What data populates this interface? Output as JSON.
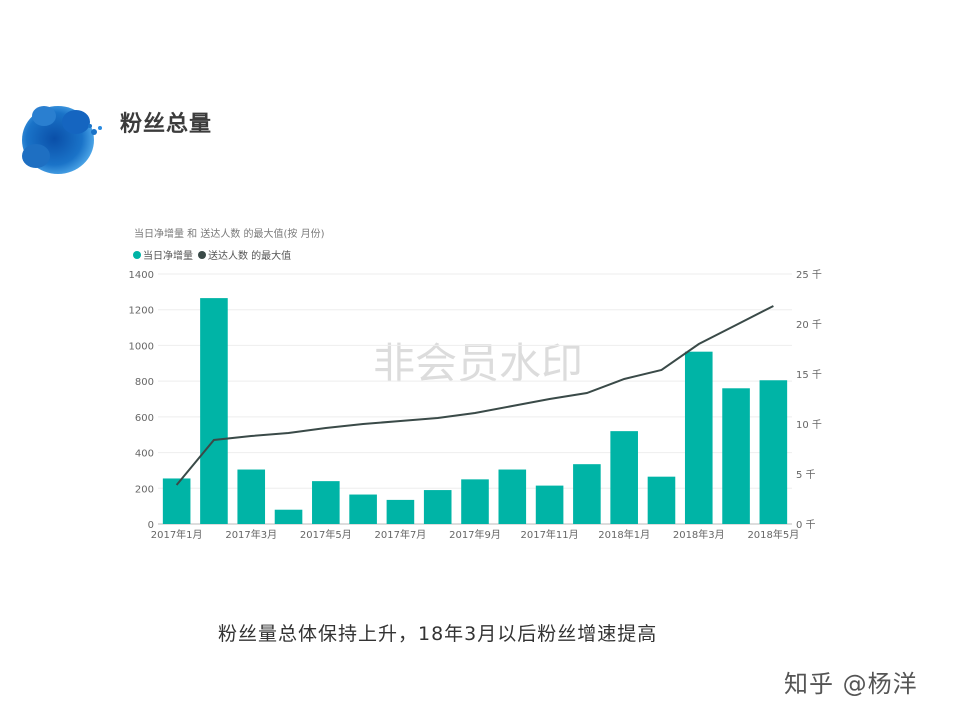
{
  "page": {
    "title": "粉丝总量",
    "caption": "粉丝量总体保持上升，18年3月以后粉丝增速提高",
    "credit": "知乎 @杨洋",
    "watermark": "非会员水印"
  },
  "colors": {
    "bar": "#00b4a6",
    "line": "#3a4a48",
    "logo": "#1a73c8"
  },
  "icons": {
    "logo": "blue-ink-splash-icon"
  },
  "chart_data": {
    "type": "bar",
    "title": "当日净增量 和 送达人数 的最大值(按 月份)",
    "legend_position": "top-left",
    "grid": true,
    "categories": [
      "2017年1月",
      "2017年2月",
      "2017年3月",
      "2017年4月",
      "2017年5月",
      "2017年6月",
      "2017年7月",
      "2017年8月",
      "2017年9月",
      "2017年10月",
      "2017年11月",
      "2017年12月",
      "2018年1月",
      "2018年2月",
      "2018年3月",
      "2018年4月",
      "2018年5月"
    ],
    "x_tick_labels": [
      {
        "index": 0,
        "label": "2017年1月"
      },
      {
        "index": 2,
        "label": "2017年3月"
      },
      {
        "index": 4,
        "label": "2017年5月"
      },
      {
        "index": 6,
        "label": "2017年7月"
      },
      {
        "index": 8,
        "label": "2017年9月"
      },
      {
        "index": 10,
        "label": "2017年11月"
      },
      {
        "index": 12,
        "label": "2018年1月"
      },
      {
        "index": 14,
        "label": "2018年3月"
      },
      {
        "index": 16,
        "label": "2018年5月"
      }
    ],
    "series": [
      {
        "name": "当日净增量",
        "type": "bar",
        "axis": "left",
        "values": [
          255,
          1265,
          305,
          80,
          240,
          165,
          135,
          190,
          250,
          305,
          215,
          335,
          520,
          265,
          965,
          760,
          805
        ]
      },
      {
        "name": "送达人数 的最大值",
        "type": "line",
        "axis": "right",
        "values": [
          3.9,
          8.4,
          8.8,
          9.1,
          9.6,
          10.0,
          10.3,
          10.6,
          11.1,
          11.8,
          12.5,
          13.1,
          14.5,
          15.4,
          18.0,
          19.9,
          21.8
        ]
      }
    ],
    "y_left": {
      "range": [
        0,
        1400
      ],
      "ticks": [
        "0",
        "200",
        "400",
        "600",
        "800",
        "1000",
        "1200",
        "1400"
      ]
    },
    "y_right": {
      "range": [
        0,
        25
      ],
      "ticks": [
        "0 千",
        "5 千",
        "10 千",
        "15 千",
        "20 千",
        "25 千"
      ]
    }
  }
}
